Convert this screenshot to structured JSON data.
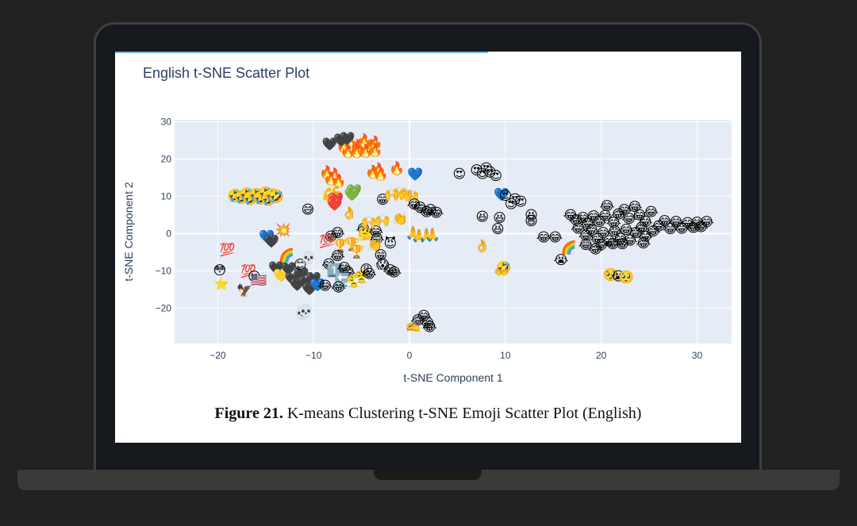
{
  "caption": {
    "label": "Figure 21.",
    "text": " K-means Clustering t-SNE Emoji Scatter Plot (English)"
  },
  "colors": {
    "plot_bg": "#e5ecf6",
    "grid": "#ffffff",
    "title": "#2a3f5f",
    "axis_text": "#2a3f5f"
  },
  "chart_data": {
    "type": "scatter",
    "title": "English t-SNE Scatter Plot",
    "xlabel": "t-SNE Component 1",
    "ylabel": "t-SNE Component 2",
    "xlim": [
      -24.5,
      33.6
    ],
    "ylim": [
      -29.5,
      30.5
    ],
    "xticks": [
      -20,
      -10,
      0,
      10,
      20,
      30
    ],
    "yticks": [
      -20,
      -10,
      0,
      10,
      20,
      30
    ],
    "grid": true,
    "legend": "none",
    "marker": "emoji",
    "points": [
      {
        "x": -18.2,
        "y": 10.2,
        "e": "🤣"
      },
      {
        "x": -17.5,
        "y": 9.8,
        "e": "🤣"
      },
      {
        "x": -17.0,
        "y": 10.5,
        "e": "🤣"
      },
      {
        "x": -16.6,
        "y": 9.4,
        "e": "🤣"
      },
      {
        "x": -16.0,
        "y": 10.4,
        "e": "🤣"
      },
      {
        "x": -15.5,
        "y": 9.5,
        "e": "🤣"
      },
      {
        "x": -15.0,
        "y": 10.8,
        "e": "🤣"
      },
      {
        "x": -14.7,
        "y": 9.2,
        "e": "🤣"
      },
      {
        "x": -14.3,
        "y": 10.3,
        "e": "🤣"
      },
      {
        "x": -13.9,
        "y": 10.0,
        "e": "🤣"
      },
      {
        "x": -10.6,
        "y": 6.5,
        "e": "😅"
      },
      {
        "x": -19.8,
        "y": -9.8,
        "e": "😳"
      },
      {
        "x": -19.6,
        "y": -13.4,
        "e": "⭐"
      },
      {
        "x": -19.0,
        "y": -4.3,
        "e": "💯"
      },
      {
        "x": -17.2,
        "y": -15.2,
        "e": "🦅"
      },
      {
        "x": -16.8,
        "y": -10.0,
        "e": "💯"
      },
      {
        "x": -16.2,
        "y": -11.5,
        "e": "😮"
      },
      {
        "x": -15.7,
        "y": -12.5,
        "e": "🇺🇸"
      },
      {
        "x": -14.9,
        "y": -0.8,
        "e": "💙"
      },
      {
        "x": -14.4,
        "y": -2.0,
        "e": "🖤"
      },
      {
        "x": -13.2,
        "y": 1.0,
        "e": "💥"
      },
      {
        "x": -12.8,
        "y": -5.8,
        "e": "🌈"
      },
      {
        "x": -13.9,
        "y": -9.2,
        "e": "🖤"
      },
      {
        "x": -13.4,
        "y": -11.2,
        "e": "💛"
      },
      {
        "x": -12.6,
        "y": -9.4,
        "e": "🖤"
      },
      {
        "x": -12.2,
        "y": -12.0,
        "e": "🖤"
      },
      {
        "x": -11.7,
        "y": -13.6,
        "e": "🖤"
      },
      {
        "x": -11.3,
        "y": -10.8,
        "e": "🖤"
      },
      {
        "x": -10.8,
        "y": -13.0,
        "e": "🖤"
      },
      {
        "x": -10.4,
        "y": -14.8,
        "e": "🖤"
      },
      {
        "x": -10.0,
        "y": -12.0,
        "e": "🖤"
      },
      {
        "x": -9.6,
        "y": -13.8,
        "e": "💙"
      },
      {
        "x": -11.4,
        "y": -8.3,
        "e": "😊"
      },
      {
        "x": -10.5,
        "y": -6.4,
        "e": "💀"
      },
      {
        "x": -11.2,
        "y": -21.3,
        "e": "💀"
      },
      {
        "x": -10.8,
        "y": -20.8,
        "e": "💀"
      },
      {
        "x": -8.6,
        "y": 16.5,
        "e": "🔥"
      },
      {
        "x": -7.8,
        "y": 15.8,
        "e": "🔥"
      },
      {
        "x": -8.2,
        "y": 14.8,
        "e": "🔥"
      },
      {
        "x": -7.4,
        "y": 14.2,
        "e": "🔥"
      },
      {
        "x": -8.4,
        "y": 10.6,
        "e": "💪"
      },
      {
        "x": -7.6,
        "y": 11.2,
        "e": "💪"
      },
      {
        "x": -7.9,
        "y": 10.0,
        "e": "💪"
      },
      {
        "x": -7.7,
        "y": 9.2,
        "e": "❤️"
      },
      {
        "x": -7.8,
        "y": 7.8,
        "e": "❤️"
      },
      {
        "x": -5.8,
        "y": 11.5,
        "e": "💚"
      },
      {
        "x": -6.0,
        "y": 10.5,
        "e": "💚"
      },
      {
        "x": -6.3,
        "y": 5.6,
        "e": "👌"
      },
      {
        "x": -8.2,
        "y": -0.8,
        "e": "😂"
      },
      {
        "x": -7.5,
        "y": 0.2,
        "e": "😂"
      },
      {
        "x": -8.6,
        "y": -2.0,
        "e": "💯"
      },
      {
        "x": -7.2,
        "y": -3.2,
        "e": "🏆"
      },
      {
        "x": -6.0,
        "y": -2.8,
        "e": "🏆"
      },
      {
        "x": -5.5,
        "y": -4.8,
        "e": "🏆"
      },
      {
        "x": -7.5,
        "y": -6.0,
        "e": "😂"
      },
      {
        "x": -8.4,
        "y": -8.2,
        "e": "😂"
      },
      {
        "x": -7.8,
        "y": -9.8,
        "e": "1️⃣"
      },
      {
        "x": -6.8,
        "y": -9.2,
        "e": "😂"
      },
      {
        "x": -6.4,
        "y": -10.4,
        "e": "😂"
      },
      {
        "x": -7.0,
        "y": -12.4,
        "e": "🔙"
      },
      {
        "x": -7.4,
        "y": -14.4,
        "e": "😂"
      },
      {
        "x": -8.8,
        "y": -14.0,
        "e": "😂"
      },
      {
        "x": -5.8,
        "y": -12.8,
        "e": "😤"
      },
      {
        "x": -5.0,
        "y": -11.6,
        "e": "😤"
      },
      {
        "x": -4.5,
        "y": -9.6,
        "e": "😩"
      },
      {
        "x": -4.2,
        "y": -10.8,
        "e": "😂"
      },
      {
        "x": -2.0,
        "y": -9.8,
        "e": "😂"
      },
      {
        "x": -1.6,
        "y": -10.4,
        "e": "😂"
      },
      {
        "x": -4.8,
        "y": 1.2,
        "e": "😂"
      },
      {
        "x": -4.6,
        "y": 0.0,
        "e": "🤔"
      },
      {
        "x": -3.5,
        "y": 0.6,
        "e": "😂"
      },
      {
        "x": -3.4,
        "y": -1.4,
        "e": "😂"
      },
      {
        "x": -3.6,
        "y": -3.0,
        "e": "👏"
      },
      {
        "x": -2.8,
        "y": -8.2,
        "e": "😱"
      },
      {
        "x": -3.0,
        "y": -5.8,
        "e": "😁"
      },
      {
        "x": -2.0,
        "y": -2.6,
        "e": "😈"
      },
      {
        "x": -4.2,
        "y": 3.2,
        "e": "🙌"
      },
      {
        "x": -2.8,
        "y": 3.6,
        "e": "🙌"
      },
      {
        "x": -6.8,
        "y": 23.5,
        "e": "🔥"
      },
      {
        "x": -6.1,
        "y": 24.8,
        "e": "🔥"
      },
      {
        "x": -5.4,
        "y": 23.5,
        "e": "🔥"
      },
      {
        "x": -4.7,
        "y": 25.0,
        "e": "🔥"
      },
      {
        "x": -4.0,
        "y": 23.5,
        "e": "🔥"
      },
      {
        "x": -3.6,
        "y": 24.4,
        "e": "🔥"
      },
      {
        "x": -6.4,
        "y": 22.1,
        "e": "🔥"
      },
      {
        "x": -5.5,
        "y": 22.1,
        "e": "🔥"
      },
      {
        "x": -4.6,
        "y": 22.2,
        "e": "🔥"
      },
      {
        "x": -3.6,
        "y": 22.4,
        "e": "🔥"
      },
      {
        "x": -7.1,
        "y": 25.1,
        "e": "🖤"
      },
      {
        "x": -6.5,
        "y": 25.5,
        "e": "🖤"
      },
      {
        "x": -8.3,
        "y": 24.0,
        "e": "🖤"
      },
      {
        "x": -3.8,
        "y": 16.6,
        "e": "🔥"
      },
      {
        "x": -3.2,
        "y": 17.2,
        "e": "🔥"
      },
      {
        "x": -1.3,
        "y": 17.5,
        "e": "🔥"
      },
      {
        "x": -3.0,
        "y": 16.0,
        "e": "🔥"
      },
      {
        "x": 0.6,
        "y": 15.9,
        "e": "💙"
      },
      {
        "x": -2.8,
        "y": 9.1,
        "e": "😁"
      },
      {
        "x": -1.8,
        "y": 10.5,
        "e": "🙌"
      },
      {
        "x": -1.0,
        "y": 11.0,
        "e": "🙌"
      },
      {
        "x": -0.4,
        "y": 10.6,
        "e": "🙌"
      },
      {
        "x": 0.2,
        "y": 10.2,
        "e": "🙌"
      },
      {
        "x": -1.0,
        "y": 4.0,
        "e": "👏"
      },
      {
        "x": 0.5,
        "y": 7.8,
        "e": "😂"
      },
      {
        "x": 1.1,
        "y": 7.0,
        "e": "😂"
      },
      {
        "x": 1.8,
        "y": 5.8,
        "e": "😂"
      },
      {
        "x": 2.8,
        "y": 5.6,
        "e": "😂"
      },
      {
        "x": 2.2,
        "y": 6.4,
        "e": "😂"
      },
      {
        "x": 0.4,
        "y": 0.2,
        "e": "🙏"
      },
      {
        "x": 1.0,
        "y": -0.6,
        "e": "🙏"
      },
      {
        "x": 1.8,
        "y": -0.4,
        "e": "🙏"
      },
      {
        "x": 2.4,
        "y": -0.2,
        "e": "🙏"
      },
      {
        "x": 0.9,
        "y": -23.2,
        "e": "😂"
      },
      {
        "x": 1.5,
        "y": -22.1,
        "e": "😂"
      },
      {
        "x": 1.9,
        "y": -24.0,
        "e": "😂"
      },
      {
        "x": 2.1,
        "y": -25.0,
        "e": "😂"
      },
      {
        "x": 0.4,
        "y": -24.6,
        "e": "✍️"
      },
      {
        "x": 5.2,
        "y": 16.0,
        "e": "😍"
      },
      {
        "x": 7.0,
        "y": 17.0,
        "e": "😍"
      },
      {
        "x": 7.6,
        "y": 16.0,
        "e": "😍"
      },
      {
        "x": 8.4,
        "y": 16.5,
        "e": "😍"
      },
      {
        "x": 9.0,
        "y": 15.5,
        "e": "😍"
      },
      {
        "x": 8.0,
        "y": 17.5,
        "e": "😍"
      },
      {
        "x": 9.6,
        "y": 10.5,
        "e": "💙"
      },
      {
        "x": 10.0,
        "y": 10.2,
        "e": "😍"
      },
      {
        "x": 11.0,
        "y": 9.2,
        "e": "😍"
      },
      {
        "x": 11.6,
        "y": 8.6,
        "e": "😍"
      },
      {
        "x": 10.6,
        "y": 8.0,
        "e": "😍"
      },
      {
        "x": 7.6,
        "y": 4.5,
        "e": "😆"
      },
      {
        "x": 9.4,
        "y": 4.2,
        "e": "😆"
      },
      {
        "x": 9.2,
        "y": 1.2,
        "e": "😆"
      },
      {
        "x": 12.7,
        "y": 5.0,
        "e": "😆"
      },
      {
        "x": 12.7,
        "y": 3.4,
        "e": "😆"
      },
      {
        "x": 7.6,
        "y": -3.2,
        "e": "👌"
      },
      {
        "x": 9.8,
        "y": -9.2,
        "e": "🤣"
      },
      {
        "x": 9.6,
        "y": -10.4,
        "e": "👐"
      },
      {
        "x": 14.0,
        "y": -1.0,
        "e": "😂"
      },
      {
        "x": 15.2,
        "y": -1.0,
        "e": "😂"
      },
      {
        "x": 15.8,
        "y": -7.0,
        "e": "😭"
      },
      {
        "x": 16.6,
        "y": -3.8,
        "e": "🌈"
      },
      {
        "x": 16.8,
        "y": 5.0,
        "e": "😂"
      },
      {
        "x": 17.4,
        "y": 3.6,
        "e": "😂"
      },
      {
        "x": 18.1,
        "y": 4.2,
        "e": "😂"
      },
      {
        "x": 18.6,
        "y": 2.6,
        "e": "😂"
      },
      {
        "x": 19.2,
        "y": 4.6,
        "e": "😂"
      },
      {
        "x": 19.8,
        "y": 3.2,
        "e": "😂"
      },
      {
        "x": 20.4,
        "y": 4.8,
        "e": "😂"
      },
      {
        "x": 20.6,
        "y": 7.4,
        "e": "😂"
      },
      {
        "x": 21.3,
        "y": 3.0,
        "e": "😂"
      },
      {
        "x": 21.8,
        "y": 5.2,
        "e": "😂"
      },
      {
        "x": 22.4,
        "y": 6.4,
        "e": "😂"
      },
      {
        "x": 22.9,
        "y": 4.0,
        "e": "😂"
      },
      {
        "x": 23.5,
        "y": 7.2,
        "e": "😂"
      },
      {
        "x": 24.0,
        "y": 5.0,
        "e": "😂"
      },
      {
        "x": 24.6,
        "y": 3.2,
        "e": "😂"
      },
      {
        "x": 25.2,
        "y": 5.8,
        "e": "😂"
      },
      {
        "x": 26.0,
        "y": 2.0,
        "e": "😂"
      },
      {
        "x": 26.6,
        "y": 3.4,
        "e": "😂"
      },
      {
        "x": 27.2,
        "y": 1.2,
        "e": "😂"
      },
      {
        "x": 27.8,
        "y": 3.2,
        "e": "😂"
      },
      {
        "x": 28.4,
        "y": 1.4,
        "e": "😂"
      },
      {
        "x": 29.0,
        "y": 2.8,
        "e": "😂"
      },
      {
        "x": 29.6,
        "y": 1.6,
        "e": "😂"
      },
      {
        "x": 30.0,
        "y": 3.0,
        "e": "😂"
      },
      {
        "x": 30.4,
        "y": 1.8,
        "e": "😂"
      },
      {
        "x": 31.0,
        "y": 3.2,
        "e": "😂"
      },
      {
        "x": 17.6,
        "y": 1.4,
        "e": "😂"
      },
      {
        "x": 18.4,
        "y": -0.6,
        "e": "😂"
      },
      {
        "x": 19.0,
        "y": 0.8,
        "e": "😂"
      },
      {
        "x": 19.6,
        "y": -1.4,
        "e": "😂"
      },
      {
        "x": 20.2,
        "y": 0.2,
        "e": "😂"
      },
      {
        "x": 20.8,
        "y": -2.0,
        "e": "😂"
      },
      {
        "x": 21.4,
        "y": 0.6,
        "e": "😂"
      },
      {
        "x": 22.0,
        "y": -1.4,
        "e": "😂"
      },
      {
        "x": 22.6,
        "y": 1.0,
        "e": "😂"
      },
      {
        "x": 23.0,
        "y": -1.8,
        "e": "😂"
      },
      {
        "x": 23.6,
        "y": 0.2,
        "e": "😂"
      },
      {
        "x": 24.2,
        "y": 1.6,
        "e": "😂"
      },
      {
        "x": 24.6,
        "y": -0.8,
        "e": "😂"
      },
      {
        "x": 25.4,
        "y": 0.6,
        "e": "😂"
      },
      {
        "x": 19.4,
        "y": -4.2,
        "e": "😂"
      },
      {
        "x": 20.0,
        "y": -3.0,
        "e": "😂"
      },
      {
        "x": 21.2,
        "y": -2.8,
        "e": "😂"
      },
      {
        "x": 22.2,
        "y": -2.8,
        "e": "😂"
      },
      {
        "x": 24.4,
        "y": -2.6,
        "e": "😂"
      },
      {
        "x": 18.4,
        "y": -3.0,
        "e": "😂"
      },
      {
        "x": 21.0,
        "y": -11.0,
        "e": "🥺"
      },
      {
        "x": 21.8,
        "y": -11.4,
        "e": "😭"
      },
      {
        "x": 22.6,
        "y": -11.6,
        "e": "🥺"
      }
    ]
  }
}
